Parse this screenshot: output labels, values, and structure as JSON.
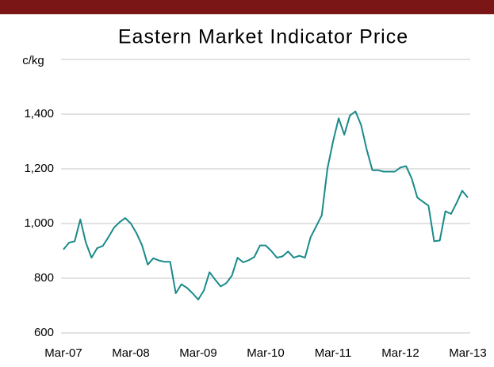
{
  "chart_data": {
    "type": "line",
    "title": "Eastern Market Indicator Price",
    "y_label": "c/kg",
    "categories": [
      "Mar-07",
      null,
      null,
      null,
      null,
      null,
      null,
      null,
      null,
      null,
      null,
      null,
      "Mar-08",
      null,
      null,
      null,
      null,
      null,
      null,
      null,
      null,
      null,
      null,
      null,
      "Mar-09",
      null,
      null,
      null,
      null,
      null,
      null,
      null,
      null,
      null,
      null,
      null,
      "Mar-10",
      null,
      null,
      null,
      null,
      null,
      null,
      null,
      null,
      null,
      null,
      null,
      "Mar-11",
      null,
      null,
      null,
      null,
      null,
      null,
      null,
      null,
      null,
      null,
      null,
      "Mar-12",
      null,
      null,
      null,
      null,
      null,
      null,
      null,
      null,
      null,
      null,
      null,
      "Mar-13"
    ],
    "series": [
      {
        "name": "Eastern Market Indicator",
        "color": "#1a8a8a",
        "values": [
          905,
          930,
          935,
          1015,
          930,
          875,
          910,
          918,
          950,
          985,
          1005,
          1020,
          1000,
          965,
          920,
          850,
          873,
          865,
          860,
          860,
          745,
          778,
          765,
          745,
          722,
          755,
          822,
          795,
          770,
          782,
          810,
          875,
          858,
          866,
          878,
          920,
          920,
          900,
          875,
          880,
          898,
          875,
          882,
          875,
          950,
          990,
          1030,
          1200,
          1300,
          1385,
          1325,
          1395,
          1410,
          1360,
          1270,
          1195,
          1195,
          1190,
          1190,
          1190,
          1205,
          1210,
          1165,
          1095,
          1080,
          1065,
          935,
          938,
          1045,
          1035,
          1075,
          1120,
          1095
        ]
      }
    ],
    "ylim": [
      600,
      1600
    ],
    "yticks": [
      600,
      {
        "value": 800,
        "label": "800"
      },
      {
        "value": 1000,
        "label": "1,000"
      },
      {
        "value": 1200,
        "label": "1,200"
      },
      {
        "value": 1400,
        "label": "1,400"
      }
    ],
    "grid": true
  }
}
